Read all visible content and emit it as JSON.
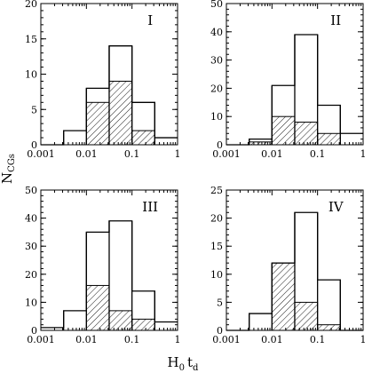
{
  "chart_data": [
    {
      "type": "bar",
      "panel_label": "I",
      "x_edges": [
        0.001,
        0.00316,
        0.01,
        0.0316,
        0.1,
        0.316,
        1
      ],
      "xscale": "log",
      "xlim": [
        0.001,
        1
      ],
      "ylim": [
        0,
        20
      ],
      "yticks": [
        0,
        5,
        10,
        15,
        20
      ],
      "series": [
        {
          "style": "outline",
          "values": [
            0,
            2,
            8,
            14,
            6,
            1
          ]
        },
        {
          "style": "hatched",
          "values": [
            0,
            0,
            6,
            9,
            2,
            0
          ]
        }
      ]
    },
    {
      "type": "bar",
      "panel_label": "II",
      "x_edges": [
        0.001,
        0.00316,
        0.01,
        0.0316,
        0.1,
        0.316,
        1
      ],
      "xscale": "log",
      "xlim": [
        0.001,
        1
      ],
      "ylim": [
        0,
        50
      ],
      "yticks": [
        0,
        10,
        20,
        30,
        40,
        50
      ],
      "series": [
        {
          "style": "outline",
          "values": [
            0,
            2,
            21,
            39,
            14,
            4
          ]
        },
        {
          "style": "hatched",
          "values": [
            0,
            1,
            10,
            8,
            4,
            0
          ]
        }
      ]
    },
    {
      "type": "bar",
      "panel_label": "III",
      "x_edges": [
        0.001,
        0.00316,
        0.01,
        0.0316,
        0.1,
        0.316,
        1
      ],
      "xscale": "log",
      "xlim": [
        0.001,
        1
      ],
      "ylim": [
        0,
        50
      ],
      "yticks": [
        0,
        10,
        20,
        30,
        40,
        50
      ],
      "series": [
        {
          "style": "outline",
          "values": [
            1,
            7,
            35,
            39,
            14,
            3
          ]
        },
        {
          "style": "hatched",
          "values": [
            0,
            0,
            16,
            7,
            4,
            0
          ]
        }
      ]
    },
    {
      "type": "bar",
      "panel_label": "IV",
      "x_edges": [
        0.001,
        0.00316,
        0.01,
        0.0316,
        0.1,
        0.316,
        1
      ],
      "xscale": "log",
      "xlim": [
        0.001,
        1
      ],
      "ylim": [
        0,
        25
      ],
      "yticks": [
        0,
        5,
        10,
        15,
        20,
        25
      ],
      "series": [
        {
          "style": "outline",
          "values": [
            0,
            3,
            12,
            21,
            9,
            0
          ]
        },
        {
          "style": "hatched",
          "values": [
            0,
            0,
            12,
            5,
            1,
            0
          ]
        }
      ]
    }
  ],
  "xtick_labels": [
    "0.001",
    "0.01",
    "0.1",
    "1"
  ],
  "xlabel": {
    "main": "H",
    "sub1": "0",
    "mid": "t",
    "sub2": "d"
  },
  "ylabel": {
    "main": "N",
    "sub": "CGs"
  }
}
